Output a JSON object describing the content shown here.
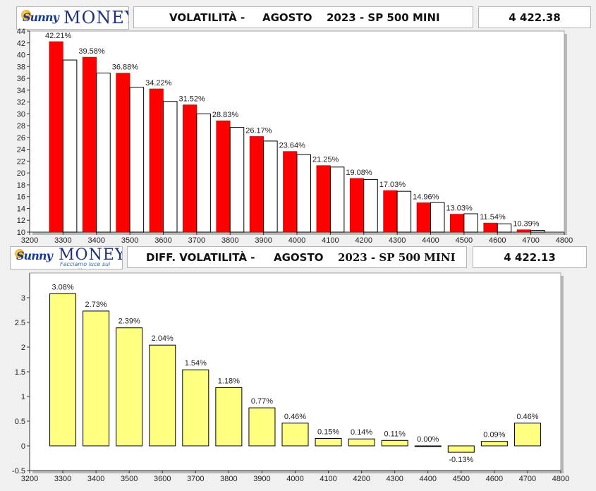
{
  "top": {
    "logo": {
      "script": "Sunny",
      "word": "MONEY"
    },
    "header": {
      "title": "VOLATILITÀ -",
      "month": "AGOSTO",
      "year": "2023 - SP 500 MINI"
    },
    "price": "4 422.38"
  },
  "bottom": {
    "logo": {
      "script": "Sunny",
      "word": "MONEY",
      "tagline": "Facciamo luce sui mercati"
    },
    "header": {
      "title": "DIFF. VOLATILITÀ -",
      "month": "AGOSTO",
      "year": "2023 - SP 500 MINI"
    },
    "price": "4 422.13"
  },
  "colors": {
    "red": "#ff0000",
    "white": "#ffffff",
    "yellow": "#ffff80",
    "frame": "#d6d6d6"
  },
  "chart_data": [
    {
      "type": "bar",
      "categories": [
        3300,
        3400,
        3500,
        3600,
        3700,
        3800,
        3900,
        4000,
        4100,
        4200,
        4300,
        4400,
        4500,
        4600,
        4700
      ],
      "series": [
        {
          "values": [
            42.21,
            39.58,
            36.88,
            34.22,
            31.52,
            28.83,
            26.17,
            23.64,
            21.25,
            19.08,
            17.03,
            14.96,
            13.03,
            11.54,
            10.39
          ]
        },
        {
          "values": [
            39.1,
            36.9,
            34.5,
            32.1,
            30.0,
            27.7,
            25.4,
            23.1,
            21.0,
            18.9,
            16.9,
            15.0,
            13.1,
            11.4,
            10.3
          ]
        }
      ],
      "data_labels": [
        "42.21%",
        "39.58%",
        "36.88%",
        "34.22%",
        "31.52%",
        "28.83%",
        "26.17%",
        "23.64%",
        "21.25%",
        "19.08%",
        "17.03%",
        "14.96%",
        "13.03%",
        "11.54%",
        "10.39%"
      ],
      "xlim": [
        3200,
        4800
      ],
      "xticks": [
        3200,
        3300,
        3400,
        3500,
        3600,
        3700,
        3800,
        3900,
        4000,
        4100,
        4200,
        4300,
        4400,
        4500,
        4600,
        4700,
        4800
      ],
      "ylim": [
        10,
        44
      ],
      "yticks": [
        10,
        12,
        14,
        16,
        18,
        20,
        22,
        24,
        26,
        28,
        30,
        32,
        34,
        36,
        38,
        40,
        42,
        44
      ],
      "grid": false
    },
    {
      "type": "bar",
      "categories": [
        3300,
        3400,
        3500,
        3600,
        3700,
        3800,
        3900,
        4000,
        4100,
        4200,
        4300,
        4400,
        4500,
        4600,
        4700
      ],
      "values": [
        3.08,
        2.73,
        2.39,
        2.04,
        1.54,
        1.18,
        0.77,
        0.46,
        0.15,
        0.14,
        0.11,
        0.0,
        -0.13,
        0.09,
        0.46
      ],
      "data_labels": [
        "3.08%",
        "2.73%",
        "2.39%",
        "2.04%",
        "1.54%",
        "1.18%",
        "0.77%",
        "0.46%",
        "0.15%",
        "0.14%",
        "0.11%",
        "0.00%",
        "-0.13%",
        "0.09%",
        "0.46%"
      ],
      "xlim": [
        3200,
        4800
      ],
      "xticks": [
        3200,
        3300,
        3400,
        3500,
        3600,
        3700,
        3800,
        3900,
        4000,
        4100,
        4200,
        4300,
        4400,
        4500,
        4600,
        4700,
        4800
      ],
      "ylim": [
        -0.5,
        3.5
      ],
      "yticks": [
        -0.5,
        0,
        0.5,
        1,
        1.5,
        2,
        2.5,
        3
      ],
      "yticklabels": [
        "-0.5",
        "0",
        "0.5",
        "1",
        "1.5",
        "2",
        "2.5",
        "3"
      ],
      "grid": false
    }
  ]
}
